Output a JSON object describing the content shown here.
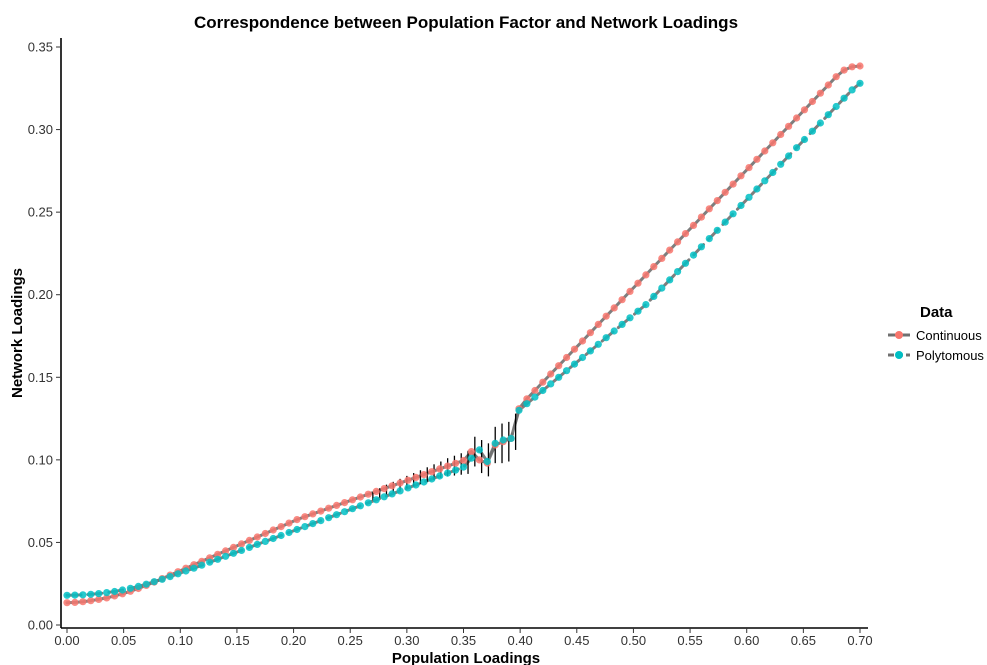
{
  "chart_data": {
    "type": "line",
    "title": "Correspondence between Population Factor and Network Loadings",
    "xlabel": "Population Loadings",
    "ylabel": "Network Loadings",
    "xlim": [
      0.0,
      0.7
    ],
    "ylim": [
      0.0,
      0.35
    ],
    "x_ticks": [
      "0.00",
      "0.05",
      "0.10",
      "0.15",
      "0.20",
      "0.25",
      "0.30",
      "0.35",
      "0.40",
      "0.45",
      "0.50",
      "0.55",
      "0.60",
      "0.65",
      "0.70"
    ],
    "y_ticks": [
      "0.00",
      "0.05",
      "0.10",
      "0.15",
      "0.20",
      "0.25",
      "0.30",
      "0.35"
    ],
    "grid": false,
    "legend": {
      "title": "Data",
      "position": "right",
      "entries": [
        "Continuous",
        "Polytomous"
      ]
    },
    "colors": {
      "Continuous": "#F8766D",
      "Polytomous": "#00BFC4",
      "line": "#707070",
      "errorbar": "#000000"
    },
    "series": [
      {
        "name": "Continuous",
        "line_style": "solid",
        "x": [
          0.0,
          0.007,
          0.014,
          0.021,
          0.028,
          0.035,
          0.042,
          0.049,
          0.056,
          0.063,
          0.07,
          0.077,
          0.084,
          0.091,
          0.098,
          0.105,
          0.112,
          0.119,
          0.126,
          0.133,
          0.14,
          0.147,
          0.154,
          0.161,
          0.168,
          0.175,
          0.182,
          0.189,
          0.196,
          0.203,
          0.21,
          0.217,
          0.224,
          0.231,
          0.238,
          0.245,
          0.252,
          0.259,
          0.266,
          0.273,
          0.28,
          0.287,
          0.294,
          0.301,
          0.308,
          0.315,
          0.322,
          0.329,
          0.336,
          0.343,
          0.35,
          0.357,
          0.364,
          0.371,
          0.378,
          0.385,
          0.392,
          0.399,
          0.406,
          0.413,
          0.42,
          0.427,
          0.434,
          0.441,
          0.448,
          0.455,
          0.462,
          0.469,
          0.476,
          0.483,
          0.49,
          0.497,
          0.504,
          0.511,
          0.518,
          0.525,
          0.532,
          0.539,
          0.546,
          0.553,
          0.56,
          0.567,
          0.574,
          0.581,
          0.588,
          0.595,
          0.602,
          0.609,
          0.616,
          0.623,
          0.63,
          0.637,
          0.644,
          0.651,
          0.658,
          0.665,
          0.672,
          0.679,
          0.686,
          0.693,
          0.7
        ],
        "y": [
          0.0135,
          0.0137,
          0.0141,
          0.0147,
          0.0155,
          0.0164,
          0.0176,
          0.0189,
          0.0204,
          0.0221,
          0.024,
          0.026,
          0.0281,
          0.0302,
          0.0323,
          0.0344,
          0.0365,
          0.0386,
          0.0407,
          0.0428,
          0.0449,
          0.047,
          0.0491,
          0.0512,
          0.0533,
          0.0554,
          0.0575,
          0.0596,
          0.0617,
          0.0638,
          0.0656,
          0.0673,
          0.069,
          0.0707,
          0.0724,
          0.0741,
          0.0758,
          0.0775,
          0.0792,
          0.0809,
          0.0826,
          0.0843,
          0.086,
          0.0877,
          0.0894,
          0.0911,
          0.0928,
          0.0945,
          0.0962,
          0.0979,
          0.0996,
          0.105,
          0.1,
          0.098,
          0.109,
          0.111,
          0.113,
          0.131,
          0.137,
          0.142,
          0.147,
          0.152,
          0.157,
          0.162,
          0.167,
          0.172,
          0.177,
          0.182,
          0.187,
          0.192,
          0.197,
          0.202,
          0.207,
          0.212,
          0.217,
          0.222,
          0.227,
          0.232,
          0.237,
          0.242,
          0.247,
          0.252,
          0.257,
          0.262,
          0.267,
          0.272,
          0.277,
          0.282,
          0.287,
          0.292,
          0.297,
          0.302,
          0.307,
          0.312,
          0.317,
          0.322,
          0.327,
          0.332,
          0.336,
          0.338,
          0.3385
        ]
      },
      {
        "name": "Polytomous",
        "line_style": "dashed",
        "x": [
          0.0,
          0.007,
          0.014,
          0.021,
          0.028,
          0.035,
          0.042,
          0.049,
          0.056,
          0.063,
          0.07,
          0.077,
          0.084,
          0.091,
          0.098,
          0.105,
          0.112,
          0.119,
          0.126,
          0.133,
          0.14,
          0.147,
          0.154,
          0.161,
          0.168,
          0.175,
          0.182,
          0.189,
          0.196,
          0.203,
          0.21,
          0.217,
          0.224,
          0.231,
          0.238,
          0.245,
          0.252,
          0.259,
          0.266,
          0.273,
          0.28,
          0.287,
          0.294,
          0.301,
          0.308,
          0.315,
          0.322,
          0.329,
          0.336,
          0.343,
          0.35,
          0.357,
          0.364,
          0.371,
          0.378,
          0.385,
          0.392,
          0.399,
          0.406,
          0.413,
          0.42,
          0.427,
          0.434,
          0.441,
          0.448,
          0.455,
          0.462,
          0.469,
          0.476,
          0.483,
          0.49,
          0.497,
          0.504,
          0.511,
          0.518,
          0.525,
          0.532,
          0.539,
          0.546,
          0.553,
          0.56,
          0.567,
          0.574,
          0.581,
          0.588,
          0.595,
          0.602,
          0.609,
          0.616,
          0.623,
          0.63,
          0.637,
          0.644,
          0.651,
          0.658,
          0.665,
          0.672,
          0.679,
          0.686,
          0.693,
          0.7
        ],
        "y": [
          0.018,
          0.0181,
          0.0183,
          0.0186,
          0.019,
          0.0196,
          0.0203,
          0.0212,
          0.0222,
          0.0234,
          0.0247,
          0.0262,
          0.0277,
          0.0293,
          0.031,
          0.0327,
          0.0344,
          0.0362,
          0.038,
          0.0398,
          0.0416,
          0.0434,
          0.0452,
          0.047,
          0.0488,
          0.0506,
          0.0524,
          0.0542,
          0.056,
          0.0578,
          0.0596,
          0.0614,
          0.0632,
          0.065,
          0.0668,
          0.0686,
          0.0704,
          0.0722,
          0.074,
          0.0758,
          0.0776,
          0.0794,
          0.0812,
          0.083,
          0.0848,
          0.0866,
          0.0884,
          0.0902,
          0.092,
          0.0938,
          0.0956,
          0.101,
          0.106,
          0.099,
          0.11,
          0.112,
          0.113,
          0.13,
          0.134,
          0.138,
          0.142,
          0.146,
          0.15,
          0.154,
          0.158,
          0.162,
          0.166,
          0.17,
          0.174,
          0.178,
          0.182,
          0.186,
          0.19,
          0.194,
          0.199,
          0.204,
          0.209,
          0.214,
          0.219,
          0.224,
          0.229,
          0.234,
          0.239,
          0.244,
          0.249,
          0.254,
          0.259,
          0.264,
          0.269,
          0.274,
          0.279,
          0.284,
          0.289,
          0.294,
          0.299,
          0.304,
          0.309,
          0.314,
          0.319,
          0.324,
          0.328
        ]
      }
    ],
    "error_bars": {
      "x": [
        0.27,
        0.276,
        0.282,
        0.288,
        0.294,
        0.3,
        0.306,
        0.312,
        0.318,
        0.324,
        0.33,
        0.336,
        0.342,
        0.348,
        0.354,
        0.36,
        0.366,
        0.372,
        0.378,
        0.384,
        0.39,
        0.396
      ],
      "center": [
        0.078,
        0.08,
        0.082,
        0.0835,
        0.085,
        0.0865,
        0.088,
        0.0895,
        0.091,
        0.0925,
        0.094,
        0.0955,
        0.0965,
        0.0975,
        0.0985,
        0.105,
        0.102,
        0.1,
        0.109,
        0.11,
        0.111,
        0.117
      ],
      "half_width": [
        0.0025,
        0.0028,
        0.003,
        0.0032,
        0.0035,
        0.0038,
        0.004,
        0.0042,
        0.0045,
        0.0048,
        0.005,
        0.0055,
        0.006,
        0.0065,
        0.007,
        0.009,
        0.01,
        0.01,
        0.011,
        0.012,
        0.012,
        0.011
      ]
    }
  }
}
